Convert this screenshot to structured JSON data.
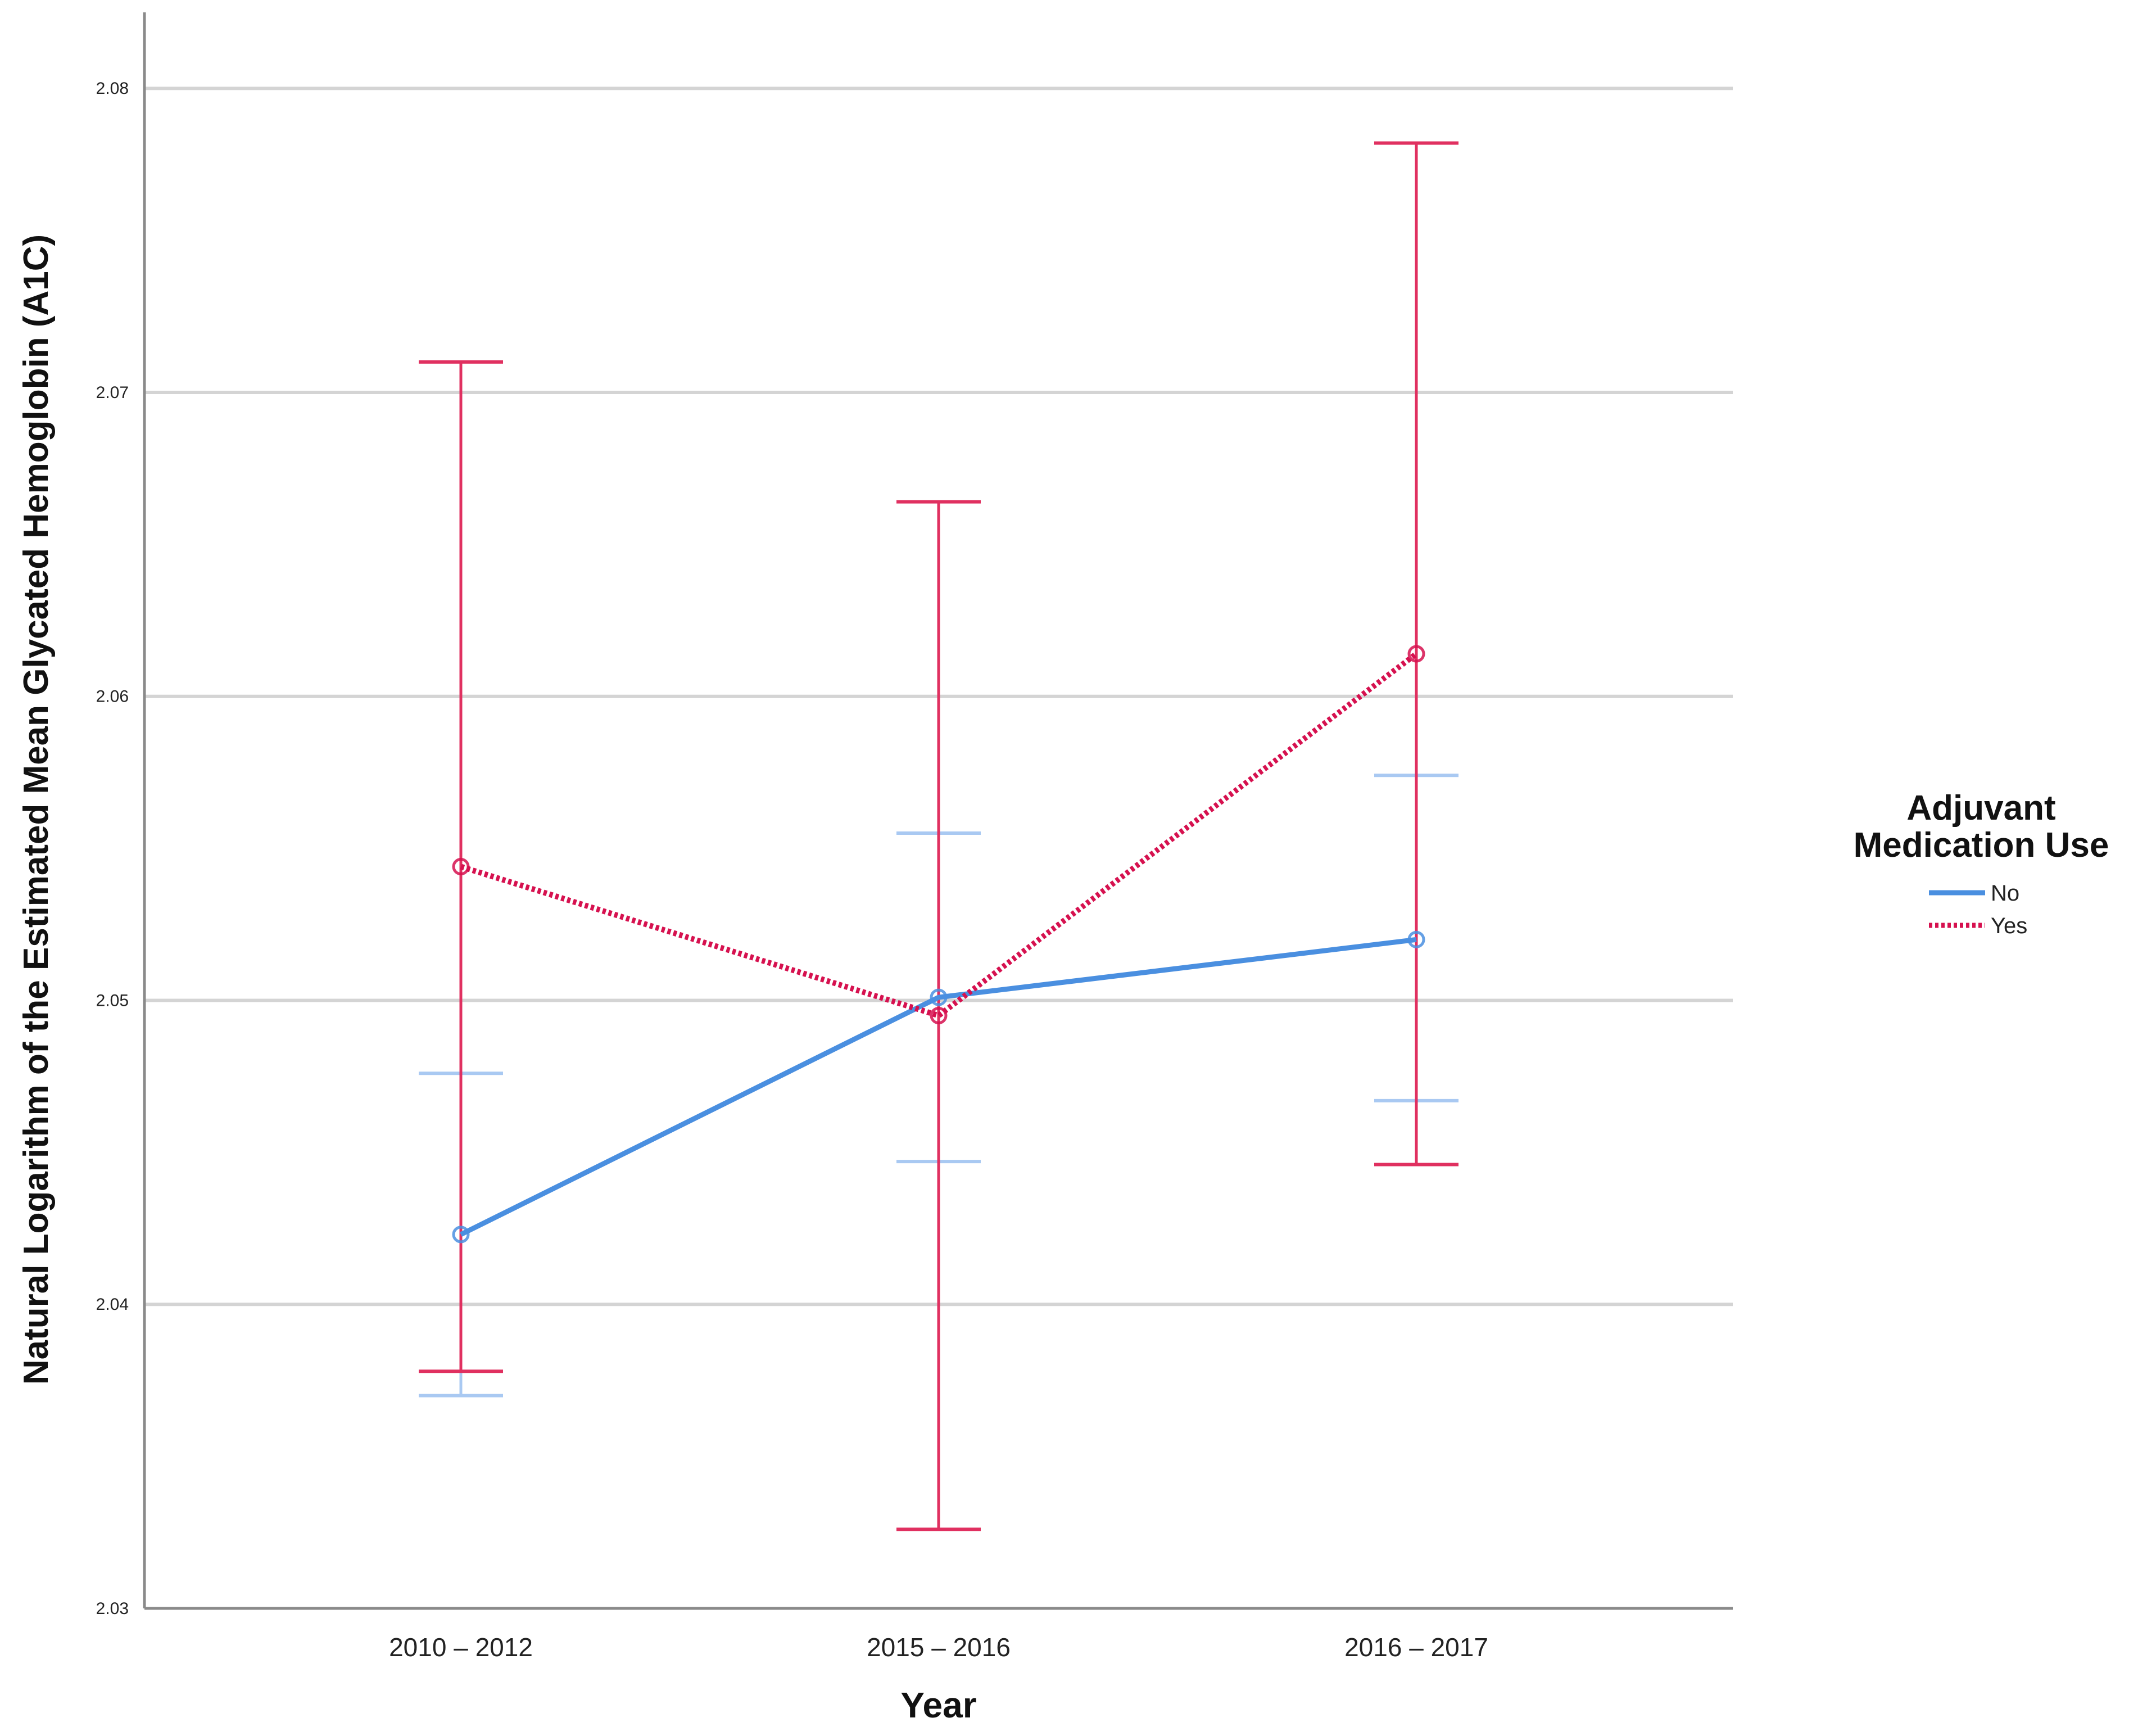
{
  "chart_data": {
    "type": "line",
    "xlabel": "Year",
    "ylabel": "Natural Logarithm of the Estimated Mean Glycated Hemoglobin (A1C)",
    "categories": [
      "2010 – 2012",
      "2015 – 2016",
      "2016 – 2017"
    ],
    "y_ticks": [
      "2.03",
      "2.04",
      "2.05",
      "2.06",
      "2.07",
      "2.08"
    ],
    "ylim": [
      2.03,
      2.0825
    ],
    "grid": true,
    "legend": {
      "title": "Adjuvant Medication Use",
      "placement": "right",
      "entries": [
        "No",
        "Yes"
      ]
    },
    "series": [
      {
        "name": "No",
        "color": "#4a8fe0",
        "error_color": "#a9c9f2",
        "style": "solid",
        "values": [
          2.0423,
          2.0501,
          2.052
        ],
        "lower": [
          2.037,
          2.0447,
          2.0467
        ],
        "upper": [
          2.0476,
          2.0555,
          2.0574
        ]
      },
      {
        "name": "Yes",
        "color": "#d6114f",
        "error_color": "#e03060",
        "style": "dotted",
        "values": [
          2.0544,
          2.0495,
          2.0614
        ],
        "lower": [
          2.0378,
          2.0326,
          2.0446
        ],
        "upper": [
          2.071,
          2.0664,
          2.0782
        ]
      }
    ]
  }
}
